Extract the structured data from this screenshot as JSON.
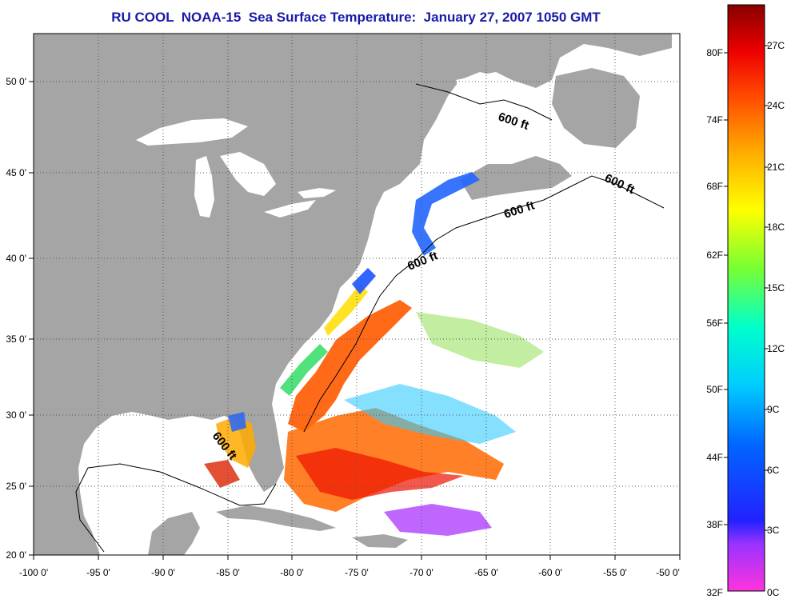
{
  "title": "RU COOL  NOAA-15  Sea Surface Temperature:  January 27, 2007 1050 GMT",
  "axes": {
    "x_ticks": [
      "-100 0'",
      "-95 0'",
      "-90 0'",
      "-85 0'",
      "-80 0'",
      "-75 0'",
      "-70 0'",
      "-65 0'",
      "-60 0'",
      "-55 0'",
      "-50 0'"
    ],
    "y_ticks": [
      "20 0'",
      "25 0'",
      "30 0'",
      "35 0'",
      "40 0'",
      "45 0'",
      "50 0'"
    ]
  },
  "contour_label": "600 ft",
  "colorbar": {
    "fahrenheit": [
      "80F",
      "74F",
      "68F",
      "62F",
      "56F",
      "50F",
      "44F",
      "38F",
      "32F"
    ],
    "celsius": [
      "27C",
      "24C",
      "21C",
      "18C",
      "15C",
      "12C",
      "9C",
      "6C",
      "3C",
      "0C"
    ],
    "colors": [
      "#ff33cc",
      "#9933ff",
      "#3333ff",
      "#0066ff",
      "#00ccff",
      "#00ffcc",
      "#66ff66",
      "#ffff00",
      "#ffaa00",
      "#ff5500",
      "#ff0000",
      "#cc0000",
      "#8b0000"
    ]
  },
  "colors": {
    "land": "#a5a5a5",
    "ocean": "#ffffff",
    "title": "#1a1aa8"
  }
}
